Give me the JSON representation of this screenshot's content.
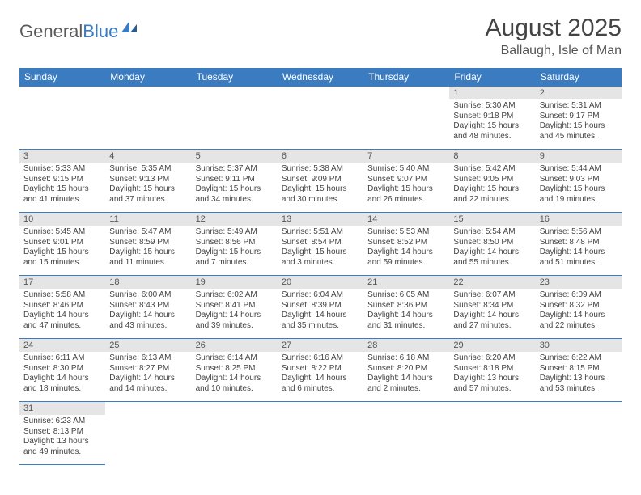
{
  "logo": {
    "text1": "General",
    "text2": "Blue"
  },
  "header": {
    "month": "August 2025",
    "location": "Ballaugh, Isle of Man"
  },
  "theme": {
    "header_bg": "#3b7bbf",
    "header_fg": "#ffffff",
    "daynum_bg": "#e5e5e5",
    "border": "#3b7bbf",
    "text": "#444444"
  },
  "weekdays": [
    "Sunday",
    "Monday",
    "Tuesday",
    "Wednesday",
    "Thursday",
    "Friday",
    "Saturday"
  ],
  "days": {
    "1": {
      "sunrise": "5:30 AM",
      "sunset": "9:18 PM",
      "daylight": "15 hours and 48 minutes."
    },
    "2": {
      "sunrise": "5:31 AM",
      "sunset": "9:17 PM",
      "daylight": "15 hours and 45 minutes."
    },
    "3": {
      "sunrise": "5:33 AM",
      "sunset": "9:15 PM",
      "daylight": "15 hours and 41 minutes."
    },
    "4": {
      "sunrise": "5:35 AM",
      "sunset": "9:13 PM",
      "daylight": "15 hours and 37 minutes."
    },
    "5": {
      "sunrise": "5:37 AM",
      "sunset": "9:11 PM",
      "daylight": "15 hours and 34 minutes."
    },
    "6": {
      "sunrise": "5:38 AM",
      "sunset": "9:09 PM",
      "daylight": "15 hours and 30 minutes."
    },
    "7": {
      "sunrise": "5:40 AM",
      "sunset": "9:07 PM",
      "daylight": "15 hours and 26 minutes."
    },
    "8": {
      "sunrise": "5:42 AM",
      "sunset": "9:05 PM",
      "daylight": "15 hours and 22 minutes."
    },
    "9": {
      "sunrise": "5:44 AM",
      "sunset": "9:03 PM",
      "daylight": "15 hours and 19 minutes."
    },
    "10": {
      "sunrise": "5:45 AM",
      "sunset": "9:01 PM",
      "daylight": "15 hours and 15 minutes."
    },
    "11": {
      "sunrise": "5:47 AM",
      "sunset": "8:59 PM",
      "daylight": "15 hours and 11 minutes."
    },
    "12": {
      "sunrise": "5:49 AM",
      "sunset": "8:56 PM",
      "daylight": "15 hours and 7 minutes."
    },
    "13": {
      "sunrise": "5:51 AM",
      "sunset": "8:54 PM",
      "daylight": "15 hours and 3 minutes."
    },
    "14": {
      "sunrise": "5:53 AM",
      "sunset": "8:52 PM",
      "daylight": "14 hours and 59 minutes."
    },
    "15": {
      "sunrise": "5:54 AM",
      "sunset": "8:50 PM",
      "daylight": "14 hours and 55 minutes."
    },
    "16": {
      "sunrise": "5:56 AM",
      "sunset": "8:48 PM",
      "daylight": "14 hours and 51 minutes."
    },
    "17": {
      "sunrise": "5:58 AM",
      "sunset": "8:46 PM",
      "daylight": "14 hours and 47 minutes."
    },
    "18": {
      "sunrise": "6:00 AM",
      "sunset": "8:43 PM",
      "daylight": "14 hours and 43 minutes."
    },
    "19": {
      "sunrise": "6:02 AM",
      "sunset": "8:41 PM",
      "daylight": "14 hours and 39 minutes."
    },
    "20": {
      "sunrise": "6:04 AM",
      "sunset": "8:39 PM",
      "daylight": "14 hours and 35 minutes."
    },
    "21": {
      "sunrise": "6:05 AM",
      "sunset": "8:36 PM",
      "daylight": "14 hours and 31 minutes."
    },
    "22": {
      "sunrise": "6:07 AM",
      "sunset": "8:34 PM",
      "daylight": "14 hours and 27 minutes."
    },
    "23": {
      "sunrise": "6:09 AM",
      "sunset": "8:32 PM",
      "daylight": "14 hours and 22 minutes."
    },
    "24": {
      "sunrise": "6:11 AM",
      "sunset": "8:30 PM",
      "daylight": "14 hours and 18 minutes."
    },
    "25": {
      "sunrise": "6:13 AM",
      "sunset": "8:27 PM",
      "daylight": "14 hours and 14 minutes."
    },
    "26": {
      "sunrise": "6:14 AM",
      "sunset": "8:25 PM",
      "daylight": "14 hours and 10 minutes."
    },
    "27": {
      "sunrise": "6:16 AM",
      "sunset": "8:22 PM",
      "daylight": "14 hours and 6 minutes."
    },
    "28": {
      "sunrise": "6:18 AM",
      "sunset": "8:20 PM",
      "daylight": "14 hours and 2 minutes."
    },
    "29": {
      "sunrise": "6:20 AM",
      "sunset": "8:18 PM",
      "daylight": "13 hours and 57 minutes."
    },
    "30": {
      "sunrise": "6:22 AM",
      "sunset": "8:15 PM",
      "daylight": "13 hours and 53 minutes."
    },
    "31": {
      "sunrise": "6:23 AM",
      "sunset": "8:13 PM",
      "daylight": "13 hours and 49 minutes."
    }
  },
  "layout": {
    "first_weekday_index": 5,
    "num_days": 31,
    "labels": {
      "sunrise": "Sunrise: ",
      "sunset": "Sunset: ",
      "daylight": "Daylight: "
    }
  }
}
